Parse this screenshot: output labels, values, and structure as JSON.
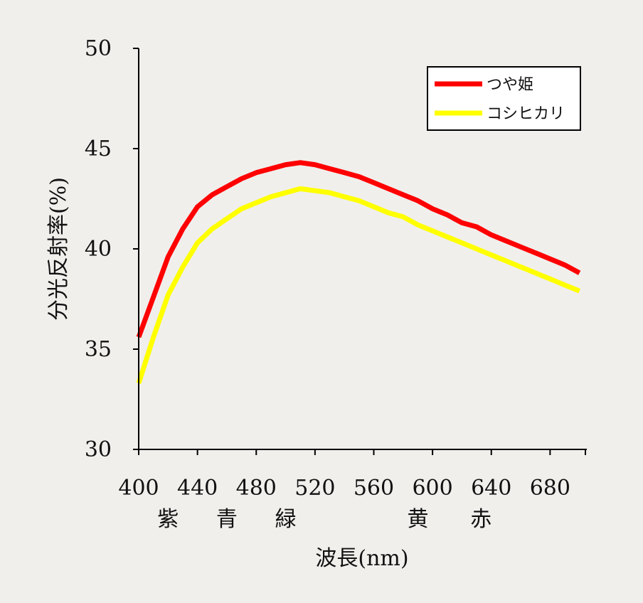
{
  "chart_data": {
    "type": "line",
    "title": "",
    "xlabel": "波長(nm)",
    "ylabel": "分光反射率(%)",
    "xlim": [
      400,
      705
    ],
    "ylim": [
      30,
      50
    ],
    "x_ticks": [
      400,
      440,
      480,
      520,
      560,
      600,
      640,
      680
    ],
    "y_ticks": [
      30,
      35,
      40,
      45,
      50
    ],
    "grid": false,
    "legend_position": "top-right",
    "color_bands": [
      {
        "label": "紫",
        "x": 420
      },
      {
        "label": "青",
        "x": 460
      },
      {
        "label": "緑",
        "x": 500
      },
      {
        "label": "黄",
        "x": 590
      },
      {
        "label": "赤",
        "x": 633
      }
    ],
    "x": [
      400,
      410,
      420,
      430,
      440,
      450,
      460,
      470,
      480,
      490,
      500,
      510,
      520,
      530,
      540,
      550,
      560,
      570,
      580,
      590,
      600,
      610,
      620,
      630,
      640,
      650,
      660,
      670,
      680,
      690,
      700
    ],
    "series": [
      {
        "name": "つや姫",
        "color": "#ff0000",
        "values": [
          35.6,
          37.6,
          39.6,
          41.0,
          42.1,
          42.7,
          43.1,
          43.5,
          43.8,
          44.0,
          44.2,
          44.3,
          44.2,
          44.0,
          43.8,
          43.6,
          43.3,
          43.0,
          42.7,
          42.4,
          42.0,
          41.7,
          41.3,
          41.1,
          40.7,
          40.4,
          40.1,
          39.8,
          39.5,
          39.2,
          38.8
        ]
      },
      {
        "name": "コシヒカリ",
        "color": "#ffff00",
        "values": [
          33.3,
          35.6,
          37.7,
          39.1,
          40.3,
          41.0,
          41.5,
          42.0,
          42.3,
          42.6,
          42.8,
          43.0,
          42.9,
          42.8,
          42.6,
          42.4,
          42.1,
          41.8,
          41.6,
          41.2,
          40.9,
          40.6,
          40.3,
          40.0,
          39.7,
          39.4,
          39.1,
          38.8,
          38.5,
          38.2,
          37.9
        ]
      }
    ]
  }
}
